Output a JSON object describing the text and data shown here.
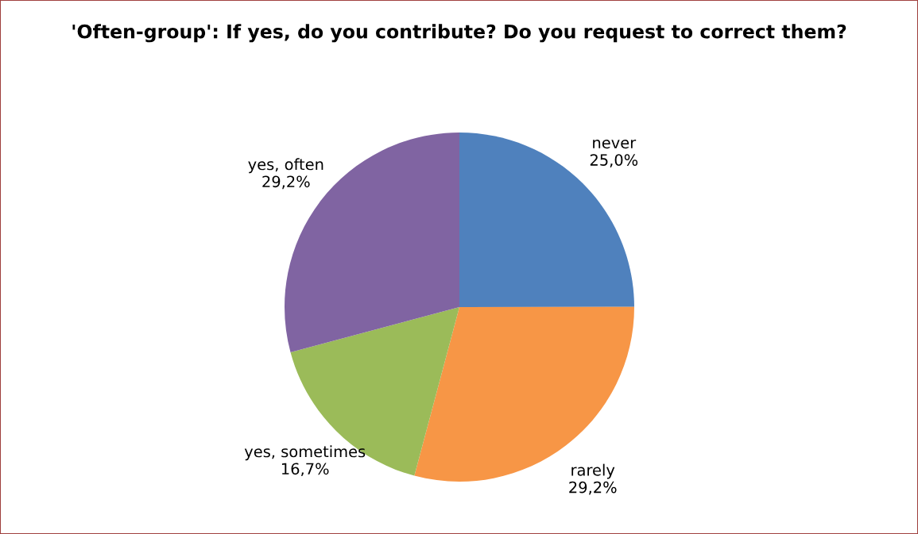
{
  "chart_data": {
    "type": "pie",
    "title": "'Often-group': If yes, do you contribute? Do you request to correct them?",
    "categories": [
      "never",
      "rarely",
      "yes, sometimes",
      "yes, often"
    ],
    "values": [
      25.0,
      29.2,
      16.7,
      29.2
    ],
    "value_labels": [
      "25,0%",
      "29,2%",
      "16,7%",
      "29,2%"
    ],
    "colors": [
      "#4f81bd",
      "#f79646",
      "#9bbb59",
      "#8064a2"
    ],
    "legend": false
  }
}
